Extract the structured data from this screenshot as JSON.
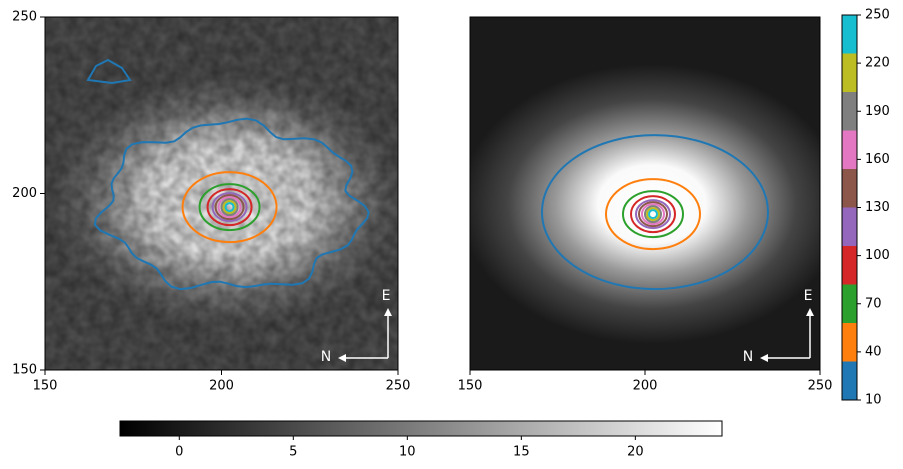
{
  "chart_data": [
    {
      "type": "image",
      "xlim": [
        150,
        250
      ],
      "ylim": [
        150,
        250
      ],
      "xticks": [
        150,
        200,
        250
      ],
      "yticks": [
        150,
        200,
        250
      ],
      "annotations": [
        "E",
        "N"
      ]
    },
    {
      "type": "model",
      "xlim": [
        150,
        250
      ],
      "ylim": [
        150,
        250
      ],
      "xticks": [
        150,
        200,
        250
      ],
      "annotations": [
        "E",
        "N"
      ]
    },
    {
      "type": "colorbar",
      "orientation": "vertical",
      "ylim": [
        10,
        250
      ],
      "yticks": [
        10,
        40,
        70,
        100,
        130,
        160,
        190,
        220,
        250
      ],
      "boundaries": [
        10,
        34,
        58,
        82,
        106,
        130,
        154,
        178,
        202,
        226,
        250
      ],
      "colors": [
        "#1f77b4",
        "#ff7f0e",
        "#2ca02c",
        "#d62728",
        "#9467bd",
        "#8c564b",
        "#e377c2",
        "#7f7f7f",
        "#bcbd22",
        "#17becf"
      ]
    },
    {
      "type": "colorbar",
      "orientation": "horizontal",
      "xlim": [
        -2.6,
        23.8
      ],
      "xticks": [
        0,
        5,
        10,
        15,
        20
      ],
      "colors": [
        "#000000",
        "#ffffff"
      ]
    }
  ]
}
